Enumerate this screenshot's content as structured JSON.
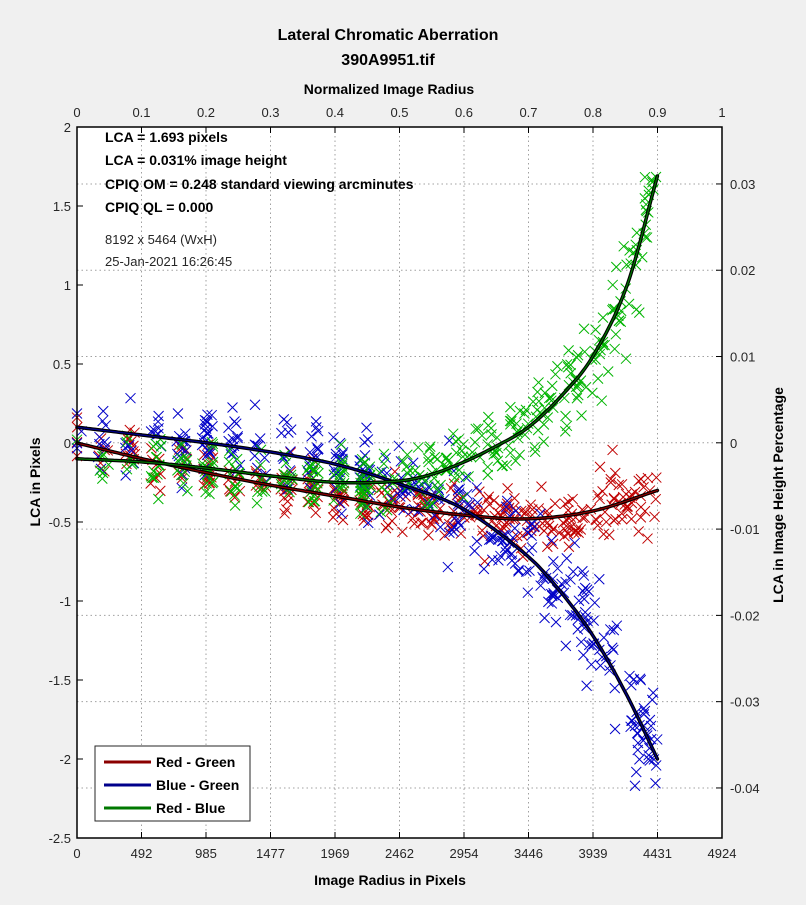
{
  "chart_data": {
    "type": "scatter",
    "title": "Lateral Chromatic Aberration",
    "subtitle": "390A9951.tif",
    "xlabel": "Image Radius in Pixels",
    "ylabel": "LCA in Pixels",
    "x2label": "Normalized Image Radius",
    "y2label": "LCA in Image Height Percentage",
    "xlim": [
      0,
      4924
    ],
    "ylim": [
      -2.5,
      2
    ],
    "x2lim": [
      0,
      1
    ],
    "y2lim": [
      -0.0458,
      0.0366
    ],
    "grid": true,
    "xticks": [
      "0",
      "492",
      "985",
      "1477",
      "1969",
      "2462",
      "2954",
      "3446",
      "3939",
      "4431",
      "4924"
    ],
    "yticks": [
      "2",
      "1.5",
      "1",
      "0.5",
      "0",
      "-0.5",
      "-1",
      "-1.5",
      "-2",
      "-2.5"
    ],
    "x2ticks": [
      "0",
      "0.1",
      "0.2",
      "0.3",
      "0.4",
      "0.5",
      "0.6",
      "0.7",
      "0.8",
      "0.9",
      "1"
    ],
    "y2ticks": [
      "0.03",
      "0.02",
      "0.01",
      "0",
      "-0.01",
      "-0.02",
      "-0.03",
      "-0.04"
    ],
    "annotations": {
      "lca_pixels": "LCA = 1.693 pixels",
      "lca_percent": "LCA = 0.031% image height",
      "cpiq_om": "CPIQ OM = 0.248 standard viewing arcminutes",
      "cpiq_ql": "CPIQ QL = 0.000",
      "dimensions": "8192 x 5464 (WxH)",
      "datetime": "25-Jan-2021 16:26:45"
    },
    "legend_position": "bottom-left",
    "series": [
      {
        "name": "Red - Green",
        "color": "#c00000",
        "fit_color": "#8b0000",
        "fit_x": [
          0,
          500,
          1000,
          1500,
          2000,
          2500,
          3000,
          3446,
          3939,
          4431
        ],
        "fit_y": [
          0.0,
          -0.1,
          -0.19,
          -0.27,
          -0.34,
          -0.41,
          -0.46,
          -0.48,
          -0.43,
          -0.3
        ],
        "scatter_spread": 0.08
      },
      {
        "name": "Blue - Green",
        "color": "#0000c8",
        "fit_color": "#00008b",
        "fit_x": [
          0,
          500,
          1000,
          1500,
          2000,
          2500,
          2954,
          3446,
          3700,
          3939,
          4200,
          4431
        ],
        "fit_y": [
          0.1,
          0.05,
          0.0,
          -0.06,
          -0.14,
          -0.27,
          -0.42,
          -0.72,
          -0.95,
          -1.22,
          -1.6,
          -2.0
        ],
        "scatter_spread": 0.12
      },
      {
        "name": "Red - Blue",
        "color": "#00b400",
        "fit_color": "#007800",
        "fit_x": [
          0,
          500,
          1000,
          1500,
          2000,
          2462,
          2700,
          2954,
          3200,
          3446,
          3700,
          3939,
          4200,
          4431
        ],
        "fit_y": [
          -0.1,
          -0.12,
          -0.16,
          -0.21,
          -0.25,
          -0.24,
          -0.2,
          -0.12,
          -0.02,
          0.1,
          0.3,
          0.55,
          1.0,
          1.69
        ],
        "scatter_spread": 0.1
      }
    ]
  }
}
